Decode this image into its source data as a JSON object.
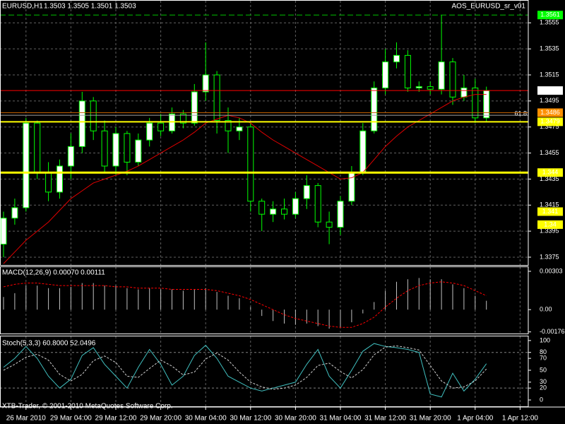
{
  "footer": "XTB-Trader, © 2001-2010 MetaQuotes Software Corp.",
  "chart_data": [
    {
      "type": "candlestick",
      "title": "EURUSD,H1",
      "ohlc_label": "1.3503 1.3505 1.3501 1.3503",
      "indicator": "AOS_EURUSD_sr_v01",
      "categories": [
        null,
        null,
        "26 Mar 2010",
        null,
        null,
        null,
        "29 Mar 04:00",
        null,
        null,
        null,
        "29 Mar 12:00",
        null,
        null,
        null,
        "29 Mar 20:00",
        null,
        null,
        null,
        "30 Mar 04:00",
        null,
        null,
        null,
        "30 Mar 12:00",
        null,
        null,
        null,
        "30 Mar 20:00",
        null,
        null,
        null,
        "31 Mar 04:00",
        null,
        null,
        null,
        "31 Mar 12:00",
        null,
        null,
        null,
        "31 Mar 20:00",
        null,
        null,
        null,
        "1 Apr 04:00",
        null,
        null,
        null,
        "1 Apr 12:00"
      ],
      "open": [
        1.3385,
        1.3405,
        1.3413,
        1.3478,
        1.344,
        1.3425,
        1.3445,
        1.346,
        1.3495,
        1.3472,
        1.3445,
        1.347,
        1.3448,
        1.3465,
        1.3478,
        1.3472,
        1.3485,
        1.3478,
        1.3502,
        1.3515,
        1.348,
        1.3472,
        1.3475,
        1.3418,
        1.3408,
        1.3412,
        1.3408,
        1.342,
        1.343,
        1.3402,
        1.3398,
        1.3418,
        1.344,
        1.3472,
        1.3505,
        1.3525,
        1.353,
        1.3505,
        1.3506,
        1.3504,
        1.3525,
        1.3498,
        1.3505,
        1.3482,
        null,
        null,
        null
      ],
      "high": [
        1.341,
        1.342,
        1.3482,
        1.348,
        1.3448,
        1.345,
        1.347,
        1.3502,
        1.3498,
        1.348,
        1.3475,
        1.3472,
        1.347,
        1.3482,
        1.3485,
        1.349,
        1.3488,
        1.3508,
        1.354,
        1.3518,
        1.349,
        1.3482,
        1.3478,
        1.342,
        1.3418,
        1.342,
        1.3425,
        1.3438,
        1.3432,
        1.341,
        1.3422,
        1.3445,
        1.3478,
        1.351,
        1.3535,
        1.354,
        1.3534,
        1.351,
        1.351,
        1.3561,
        1.3528,
        1.3515,
        1.3512,
        1.3506,
        null,
        null,
        null
      ],
      "low": [
        1.3375,
        1.34,
        1.341,
        1.3435,
        1.3418,
        1.342,
        1.3435,
        1.3455,
        1.3465,
        1.344,
        1.3438,
        1.3438,
        1.3445,
        1.346,
        1.3468,
        1.347,
        1.3474,
        1.3476,
        1.3495,
        1.347,
        1.3455,
        1.3465,
        1.341,
        1.3395,
        1.3402,
        1.3404,
        1.3405,
        1.3412,
        1.3398,
        1.3385,
        1.3392,
        1.3415,
        1.3438,
        1.347,
        1.35,
        1.352,
        1.3502,
        1.3502,
        1.35,
        1.35,
        1.3492,
        1.3495,
        1.3478,
        1.3479,
        null,
        null,
        null
      ],
      "close": [
        1.3405,
        1.3413,
        1.3478,
        1.344,
        1.3425,
        1.3445,
        1.346,
        1.3495,
        1.3472,
        1.3445,
        1.347,
        1.3448,
        1.3465,
        1.3478,
        1.3472,
        1.3485,
        1.3478,
        1.3502,
        1.3515,
        1.348,
        1.3472,
        1.3475,
        1.3418,
        1.3408,
        1.3412,
        1.3408,
        1.342,
        1.343,
        1.3402,
        1.3398,
        1.3418,
        1.344,
        1.3472,
        1.3505,
        1.3525,
        1.353,
        1.3505,
        1.3506,
        1.3504,
        1.3525,
        1.3498,
        1.3505,
        1.3482,
        1.3503,
        null,
        null,
        null
      ],
      "ma": {
        "color": "#e00000",
        "values": [
          1.337,
          1.3379,
          1.3388,
          1.3395,
          1.3402,
          1.3411,
          1.342,
          1.3426,
          1.3432,
          1.3435,
          1.3438,
          1.3441,
          1.3445,
          1.345,
          1.3455,
          1.346,
          1.3465,
          1.3471,
          1.3478,
          1.3481,
          1.3484,
          1.3482,
          1.3478,
          1.3471,
          1.3465,
          1.346,
          1.3455,
          1.345,
          1.3445,
          1.344,
          1.3435,
          1.3436,
          1.344,
          1.345,
          1.346,
          1.3468,
          1.3475,
          1.348,
          1.3485,
          1.349,
          1.3495,
          1.3498,
          1.35,
          1.35,
          null,
          null,
          null
        ]
      },
      "up_color": "#ffffff",
      "down_color": "#000000",
      "wick_color": "#00ff00",
      "ylim": [
        1.3369,
        1.3572
      ],
      "yticks": [
        1.3555,
        1.3535,
        1.3515,
        1.3495,
        1.3475,
        1.3455,
        1.3435,
        1.3415,
        1.3395,
        1.3375
      ],
      "grid": true,
      "levels": [
        {
          "value": 1.3561,
          "color": "#00c000",
          "dashed": true,
          "line": true,
          "box": "#00ff00"
        },
        {
          "value": 1.3503,
          "color": "#ff0000",
          "line": true,
          "box": "#ffffff"
        },
        {
          "value": 1.3484,
          "color": "#a0a0a0",
          "line": true,
          "label": "61.8"
        },
        {
          "value": 1.3486,
          "color": "#c06000",
          "line": true,
          "box": "#ff9000"
        },
        {
          "value": 1.3479,
          "color": "#ffff00",
          "line": true,
          "width": 2,
          "box": "#ffff00"
        },
        {
          "value": 1.344,
          "color": "#ffff00",
          "line": true,
          "width": 3,
          "box": "#ffff00"
        },
        {
          "value": 1.341,
          "line": false,
          "box": "#ffff00"
        },
        {
          "value": 1.34,
          "line": false,
          "box": "#ffff00"
        }
      ]
    },
    {
      "type": "macd",
      "title": "MACD(12,26,9) 0.00070 0.00111",
      "values": [
        0.001,
        0.0013,
        0.0019,
        0.0019,
        0.0017,
        0.0017,
        0.0018,
        0.0021,
        0.0021,
        0.0019,
        0.0019,
        0.0017,
        0.0016,
        0.0017,
        0.0016,
        0.0016,
        0.0015,
        0.0016,
        0.0017,
        0.0014,
        0.0011,
        0.0009,
        0.0002,
        -0.0005,
        -0.0009,
        -0.0011,
        -0.0012,
        -0.0011,
        -0.0013,
        -0.0015,
        -0.0014,
        -0.001,
        -0.0003,
        0.0006,
        0.0015,
        0.0022,
        0.0024,
        0.0025,
        0.0024,
        0.0024,
        0.002,
        0.0017,
        0.0011,
        0.0007
      ],
      "color": "#c0c0c0",
      "signal": {
        "color": "#ff0000",
        "values": [
          0.0018,
          0.002,
          0.0021,
          0.0021,
          0.002,
          0.0019,
          0.0019,
          0.0019,
          0.0019,
          0.0019,
          0.0018,
          0.0018,
          0.0017,
          0.0017,
          0.0017,
          0.0016,
          0.0016,
          0.0016,
          0.0016,
          0.0015,
          0.0013,
          0.0011,
          0.0008,
          0.0004,
          0.0,
          -0.0004,
          -0.0007,
          -0.0009,
          -0.0011,
          -0.0013,
          -0.0014,
          -0.0014,
          -0.0011,
          -0.0006,
          0.0002,
          0.0009,
          0.0015,
          0.0019,
          0.0021,
          0.0022,
          0.0021,
          0.0019,
          0.0015,
          0.0011
        ]
      },
      "ylim": [
        -0.00189,
        0.00336
      ],
      "yticks": [
        0.00303,
        {
          "value": 0,
          "label": "0.00"
        },
        -0.00176
      ]
    },
    {
      "type": "line",
      "title": "Stoch(5,3,3) 60.8000 52.0496",
      "series": [
        {
          "color": "#40c0c0",
          "values": [
            55,
            70,
            90,
            70,
            40,
            20,
            35,
            75,
            88,
            60,
            40,
            20,
            55,
            85,
            60,
            25,
            40,
            75,
            92,
            70,
            40,
            30,
            20,
            15,
            20,
            25,
            30,
            60,
            85,
            40,
            20,
            50,
            82,
            95,
            90,
            88,
            85,
            80,
            10,
            5,
            45,
            15,
            35,
            61
          ]
        },
        {
          "color": "#d0d0d0",
          "dashed": true,
          "values": [
            50,
            60,
            72,
            77,
            67,
            43,
            32,
            43,
            66,
            74,
            63,
            40,
            38,
            53,
            67,
            57,
            42,
            47,
            69,
            79,
            67,
            47,
            30,
            22,
            18,
            20,
            25,
            38,
            58,
            62,
            48,
            37,
            51,
            76,
            89,
            91,
            88,
            84,
            58,
            32,
            20,
            22,
            32,
            52
          ]
        }
      ],
      "ylim": [
        -10.7,
        107
      ],
      "yticks": [
        100,
        80,
        70,
        50,
        30,
        20,
        0
      ],
      "levels": [
        80,
        20
      ]
    }
  ]
}
